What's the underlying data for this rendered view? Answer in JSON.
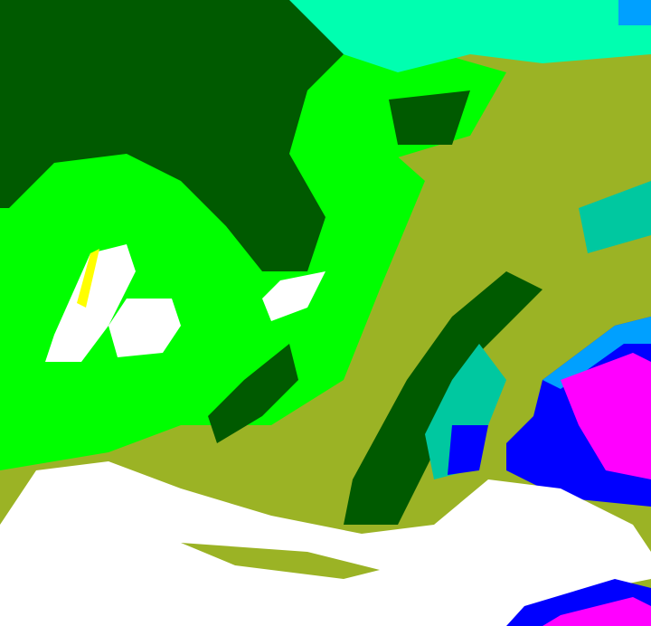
{
  "palette": {
    "background": "#9bb325",
    "dark_green": "#005a00",
    "bright_green": "#00ff00",
    "olive": "#9bb325",
    "white": "#ffffff",
    "yellow": "#ffff00",
    "aqua": "#00ffb0",
    "teal": "#00c8a0",
    "light_blue": "#00a0ff",
    "blue": "#0000ff",
    "magenta": "#ff00ff"
  }
}
